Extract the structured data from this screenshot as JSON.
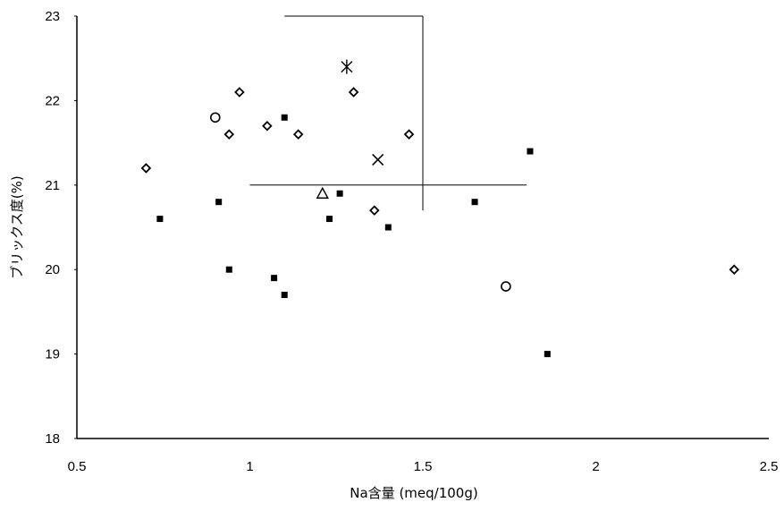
{
  "chart_data": {
    "type": "scatter",
    "xlabel": "Na含量 (meq/100g)",
    "ylabel": "ブリックス度(%)",
    "xlim": [
      0.5,
      2.5
    ],
    "ylim": [
      18,
      23
    ],
    "x_ticks": [
      "0.5",
      "1",
      "1.5",
      "2",
      "2.5"
    ],
    "y_ticks": [
      "23",
      "22",
      "21",
      "20",
      "19",
      "18"
    ],
    "y_tick_values": [
      23,
      22,
      21,
      20,
      19,
      18
    ],
    "grid": false,
    "reference_lines": {
      "vertical_x": 1.5,
      "vertical_y_range": [
        20.7,
        23
      ],
      "horizontal_y": 21,
      "horizontal_x_range": [
        1.0,
        1.8
      ]
    },
    "series": [
      {
        "marker": "square",
        "points": [
          [
            0.74,
            20.6
          ],
          [
            0.91,
            20.8
          ],
          [
            0.94,
            20.0
          ],
          [
            1.07,
            19.9
          ],
          [
            1.1,
            21.8
          ],
          [
            1.1,
            19.7
          ],
          [
            1.23,
            20.6
          ],
          [
            1.26,
            20.9
          ],
          [
            1.4,
            20.5
          ],
          [
            1.65,
            20.8
          ],
          [
            1.81,
            21.4
          ],
          [
            1.86,
            19.0
          ]
        ]
      },
      {
        "marker": "diamond",
        "points": [
          [
            0.7,
            21.2
          ],
          [
            0.94,
            21.6
          ],
          [
            0.97,
            22.1
          ],
          [
            1.05,
            21.7
          ],
          [
            1.14,
            21.6
          ],
          [
            1.3,
            22.1
          ],
          [
            1.36,
            20.7
          ],
          [
            1.46,
            21.6
          ],
          [
            2.4,
            20.0
          ]
        ]
      },
      {
        "marker": "circle",
        "points": [
          [
            0.9,
            21.8
          ],
          [
            1.74,
            19.8
          ]
        ]
      },
      {
        "marker": "triangle",
        "points": [
          [
            1.21,
            20.9
          ]
        ]
      },
      {
        "marker": "x",
        "points": [
          [
            1.37,
            21.3
          ]
        ]
      },
      {
        "marker": "asterisk",
        "points": [
          [
            1.28,
            22.4
          ]
        ]
      }
    ]
  }
}
